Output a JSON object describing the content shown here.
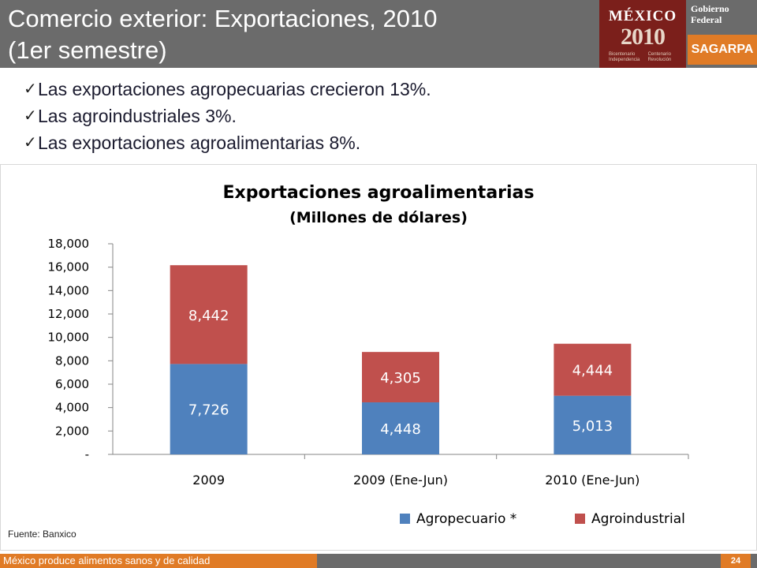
{
  "title_line1": "Comercio exterior: Exportaciones, 2010",
  "title_line2": "(1er semestre)",
  "logo": {
    "word": "MÉXICO",
    "year": "2010",
    "sub_left": "Bicentenario Independencia",
    "sub_right": "Centenario Revolución",
    "gobierno_line1": "Gobierno",
    "gobierno_line2": "Federal",
    "sagarpa": "SAGARPA"
  },
  "bullets": [
    "Las exportaciones  agropecuarias crecieron 13%.",
    "Las agroindustriales 3%.",
    "Las exportaciones agroalimentarias 8%."
  ],
  "source": "Fuente: Banxico",
  "footer_text": "México produce alimentos sanos y de calidad",
  "page_number": "24",
  "chart_data": {
    "type": "bar",
    "stacked": true,
    "title": "Exportaciones agroalimentarias",
    "subtitle": "(Millones de dólares)",
    "categories": [
      "2009",
      "2009 (Ene-Jun)",
      "2010 (Ene-Jun)"
    ],
    "series": [
      {
        "name": "Agropecuario *",
        "values": [
          7726,
          4448,
          5013
        ],
        "labels": [
          "7,726",
          "4,448",
          "5,013"
        ],
        "color": "#4f81bd"
      },
      {
        "name": "Agroindustrial",
        "values": [
          8442,
          4305,
          4444
        ],
        "labels": [
          "8,442",
          "4,305",
          "4,444"
        ],
        "color": "#c0504d"
      }
    ],
    "ylim": [
      0,
      18000
    ],
    "yticks": [
      0,
      2000,
      4000,
      6000,
      8000,
      10000,
      12000,
      14000,
      16000,
      18000
    ],
    "ytick_labels": [
      "-",
      "2,000",
      "4,000",
      "6,000",
      "8,000",
      "10,000",
      "12,000",
      "14,000",
      "16,000",
      "18,000"
    ],
    "legend_position": "bottom-right",
    "grid": false
  }
}
